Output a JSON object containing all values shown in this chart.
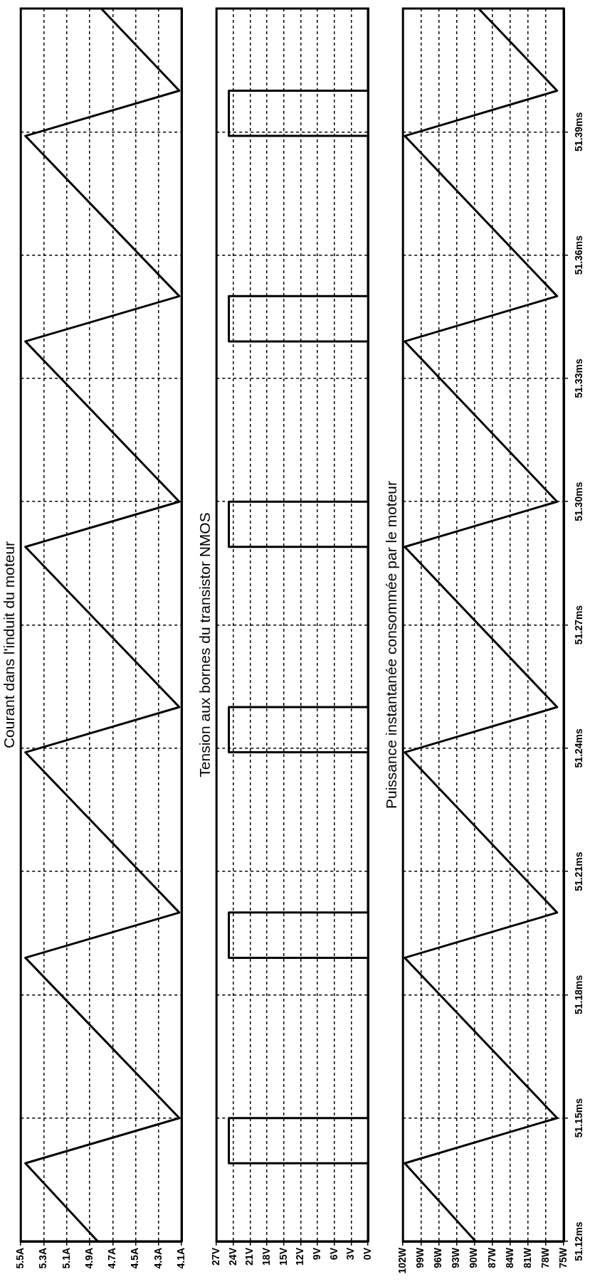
{
  "chart_data": [
    {
      "type": "line",
      "title": "Courant dans l'induit du moteur",
      "ylim": [
        51.12,
        51.42
      ],
      "yticks": [
        {
          "value": 51.12,
          "label": null
        },
        {
          "value": 51.15,
          "label": null
        },
        {
          "value": 51.18,
          "label": null
        },
        {
          "value": 51.21,
          "label": null
        },
        {
          "value": 51.24,
          "label": null
        },
        {
          "value": 51.27,
          "label": null
        },
        {
          "value": 51.3,
          "label": null
        },
        {
          "value": 51.33,
          "label": null
        },
        {
          "value": 51.36,
          "label": null
        },
        {
          "value": 51.39,
          "label": null
        }
      ],
      "xlim": [
        5.5,
        4.1
      ],
      "xticks": [
        {
          "value": 5.5,
          "label": "5.5A"
        },
        {
          "value": 5.3,
          "label": "5.3A"
        },
        {
          "value": 5.1,
          "label": "5.1A"
        },
        {
          "value": 4.9,
          "label": "4.9A"
        },
        {
          "value": 4.7,
          "label": "4.7A"
        },
        {
          "value": 4.5,
          "label": "4.5A"
        },
        {
          "value": 4.3,
          "label": "4.3A"
        },
        {
          "value": 4.1,
          "label": "4.1A"
        }
      ],
      "grid": true,
      "tick_labels": "x",
      "marker": "none",
      "line_style": "solid",
      "series": [
        {
          "color": "#000000",
          "x": [
            4.83,
            5.46,
            4.12,
            5.46,
            4.12,
            5.46,
            4.12,
            5.46,
            4.12,
            5.46,
            4.12,
            5.46,
            4.12,
            4.8
          ],
          "values": [
            51.12,
            51.139,
            51.15,
            51.189,
            51.2,
            51.239,
            51.25,
            51.289,
            51.3,
            51.339,
            51.35,
            51.389,
            51.4,
            51.42
          ]
        }
      ]
    },
    {
      "type": "line",
      "title": "Tension aux bornes du transistor NMOS",
      "ylim": [
        51.12,
        51.42
      ],
      "yticks": [
        {
          "value": 51.12,
          "label": null
        },
        {
          "value": 51.15,
          "label": null
        },
        {
          "value": 51.18,
          "label": null
        },
        {
          "value": 51.21,
          "label": null
        },
        {
          "value": 51.24,
          "label": null
        },
        {
          "value": 51.27,
          "label": null
        },
        {
          "value": 51.3,
          "label": null
        },
        {
          "value": 51.33,
          "label": null
        },
        {
          "value": 51.36,
          "label": null
        },
        {
          "value": 51.39,
          "label": null
        }
      ],
      "xlim": [
        27,
        0
      ],
      "xticks": [
        {
          "value": 27,
          "label": "27V"
        },
        {
          "value": 24,
          "label": "24V"
        },
        {
          "value": 21,
          "label": "21V"
        },
        {
          "value": 18,
          "label": "18V"
        },
        {
          "value": 15,
          "label": "15V"
        },
        {
          "value": 12,
          "label": "12V"
        },
        {
          "value": 9,
          "label": "9V"
        },
        {
          "value": 6,
          "label": "6V"
        },
        {
          "value": 3,
          "label": "3V"
        },
        {
          "value": 0,
          "label": "0V"
        }
      ],
      "grid": true,
      "tick_labels": "x",
      "marker": "none",
      "line_style": "solid",
      "series": [
        {
          "color": "#000000",
          "x": [
            0,
            0,
            24.8,
            24.8,
            0,
            0,
            24.8,
            24.8,
            0,
            0,
            24.8,
            24.8,
            0,
            0,
            24.8,
            24.8,
            0,
            0,
            24.8,
            24.8,
            0,
            0,
            24.8,
            24.8,
            0,
            0
          ],
          "values": [
            51.12,
            51.139,
            51.139,
            51.15,
            51.15,
            51.189,
            51.189,
            51.2,
            51.2,
            51.239,
            51.239,
            51.25,
            51.25,
            51.289,
            51.289,
            51.3,
            51.3,
            51.339,
            51.339,
            51.35,
            51.35,
            51.389,
            51.389,
            51.4,
            51.4,
            51.42
          ]
        }
      ]
    },
    {
      "type": "line",
      "title": "Puissance instantanée consommée par le moteur",
      "ylim": [
        51.12,
        51.42
      ],
      "yticks": [
        {
          "value": 51.12,
          "label": "51.12ms"
        },
        {
          "value": 51.15,
          "label": "51.15ms"
        },
        {
          "value": 51.18,
          "label": "51.18ms"
        },
        {
          "value": 51.21,
          "label": "51.21ms"
        },
        {
          "value": 51.24,
          "label": "51.24ms"
        },
        {
          "value": 51.27,
          "label": "51.27ms"
        },
        {
          "value": 51.3,
          "label": "51.30ms"
        },
        {
          "value": 51.33,
          "label": "51.33ms"
        },
        {
          "value": 51.36,
          "label": "51.36ms"
        },
        {
          "value": 51.39,
          "label": "51.39ms"
        }
      ],
      "xlim": [
        102,
        75
      ],
      "xticks": [
        {
          "value": 102,
          "label": "102W"
        },
        {
          "value": 99,
          "label": "99W"
        },
        {
          "value": 96,
          "label": "96W"
        },
        {
          "value": 93,
          "label": "93W"
        },
        {
          "value": 90,
          "label": "90W"
        },
        {
          "value": 87,
          "label": "87W"
        },
        {
          "value": 84,
          "label": "84W"
        },
        {
          "value": 81,
          "label": "81W"
        },
        {
          "value": 78,
          "label": "78W"
        },
        {
          "value": 75,
          "label": "75W"
        }
      ],
      "grid": true,
      "marker": "none",
      "line_style": "solid",
      "series": [
        {
          "color": "#000000",
          "x": [
            89.8,
            101.7,
            76.1,
            101.7,
            76.1,
            101.7,
            76.1,
            101.7,
            76.1,
            101.7,
            76.1,
            101.7,
            76.1,
            89.3
          ],
          "values": [
            51.12,
            51.139,
            51.15,
            51.189,
            51.2,
            51.239,
            51.25,
            51.289,
            51.3,
            51.339,
            51.35,
            51.389,
            51.4,
            51.42
          ]
        }
      ]
    }
  ]
}
